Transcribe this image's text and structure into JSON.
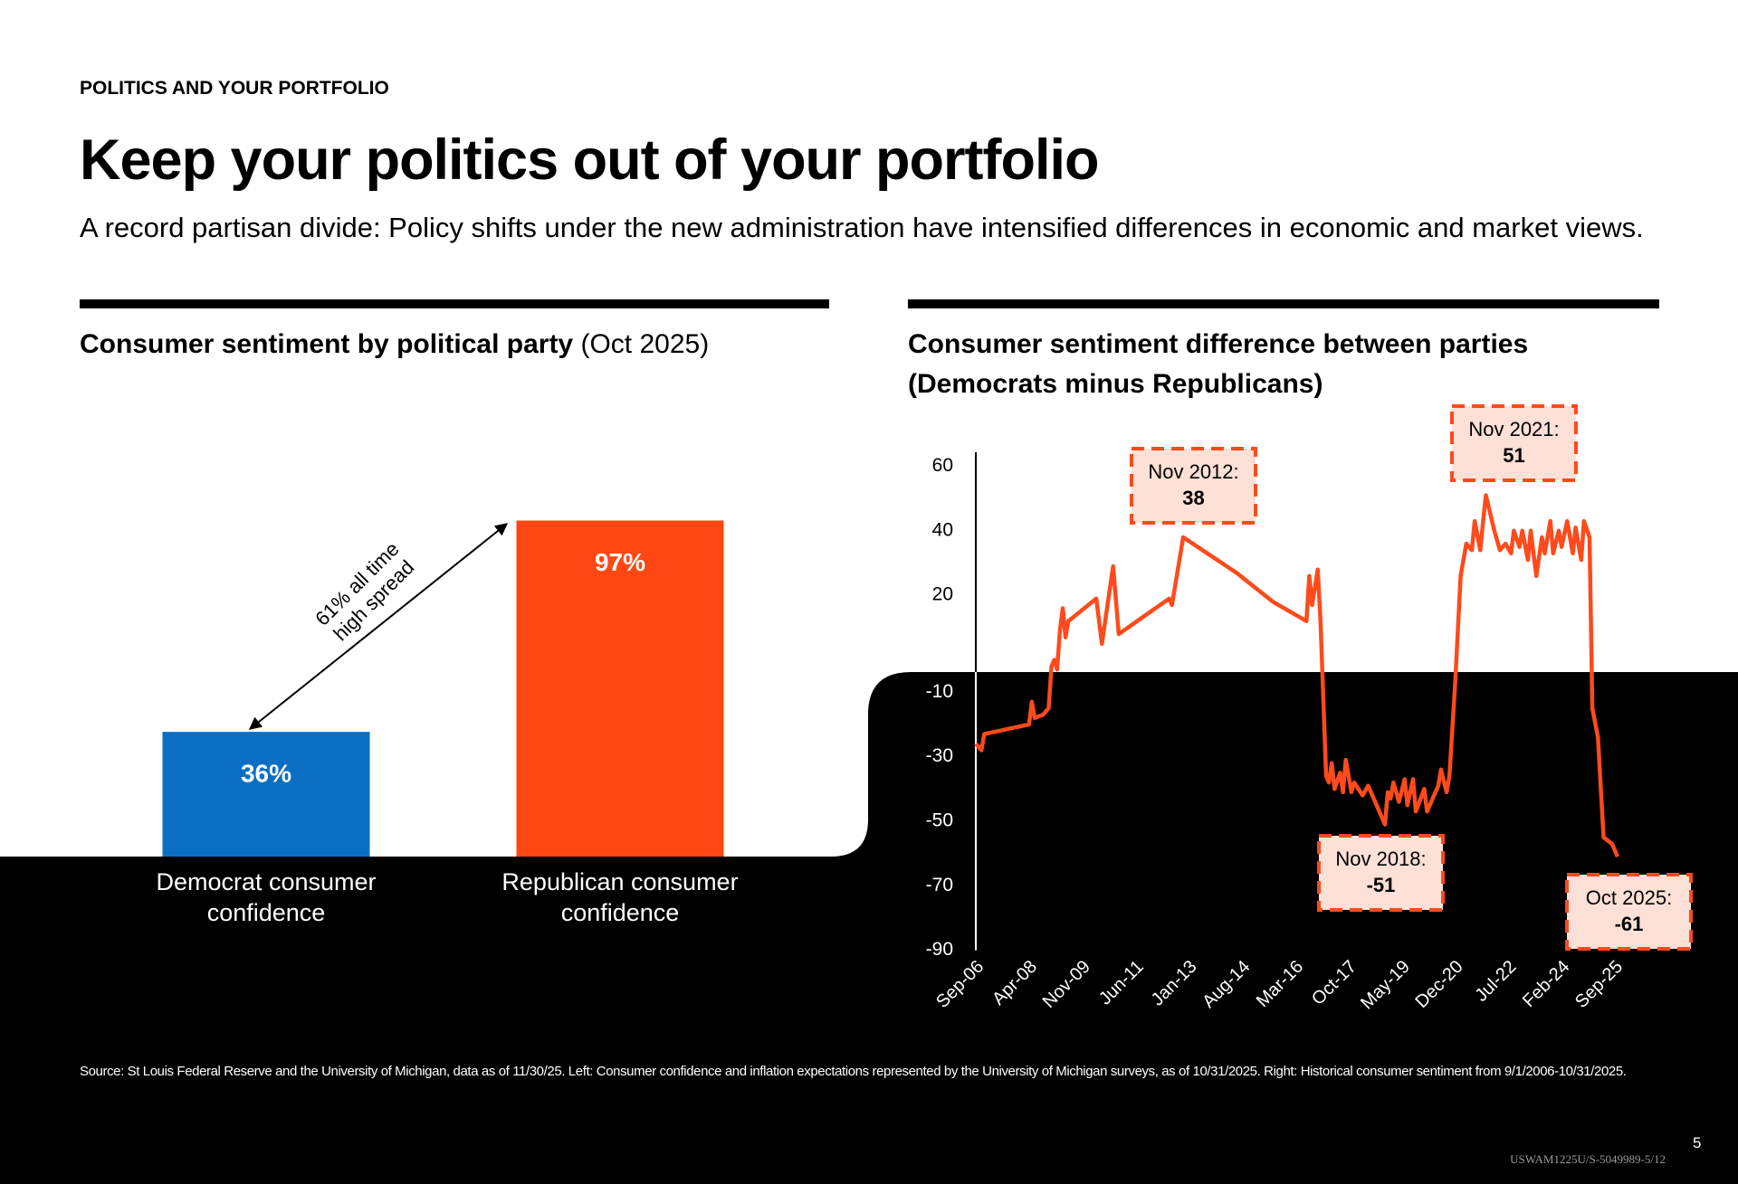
{
  "header": {
    "kicker": "POLITICS AND YOUR PORTFOLIO",
    "title": "Keep your politics out of your portfolio",
    "subtitle": "A record partisan divide: Policy shifts under the new administration have intensified differences in economic and market views."
  },
  "chart_data": [
    {
      "type": "bar",
      "title": "Consumer sentiment by political party",
      "subtitle": "(Oct 2025)",
      "categories": [
        "Democrat consumer confidence",
        "Republican consumer confidence"
      ],
      "values": [
        36,
        97
      ],
      "value_labels": [
        "36%",
        "97%"
      ],
      "colors": [
        "#0a6fc2",
        "#ff4713"
      ],
      "annotation": "61% all time high spread"
    },
    {
      "type": "line",
      "title": "Consumer sentiment difference between parties",
      "subtitle": "(Democrats minus Republicans)",
      "x": [
        "2006-09",
        "2006-11",
        "2006-12",
        "2008-04",
        "2008-05",
        "2008-06",
        "2008-09",
        "2008-11",
        "2008-12",
        "2009-01",
        "2009-02",
        "2009-03",
        "2009-04",
        "2009-05",
        "2009-06",
        "2010-04",
        "2010-06",
        "2010-10",
        "2010-12",
        "2012-06",
        "2012-07",
        "2012-11",
        "2014-06",
        "2015-07",
        "2016-07",
        "2016-08",
        "2016-09",
        "2016-11",
        "2016-12",
        "2017-02",
        "2017-03",
        "2017-04",
        "2017-05",
        "2017-07",
        "2017-08",
        "2017-09",
        "2017-11",
        "2017-12",
        "2018-03",
        "2018-05",
        "2018-07",
        "2018-11",
        "2018-12",
        "2019-01",
        "2019-02",
        "2019-04",
        "2019-06",
        "2019-07",
        "2019-09",
        "2019-10",
        "2020-01",
        "2020-02",
        "2020-04",
        "2020-06",
        "2020-07",
        "2020-09",
        "2020-10",
        "2020-12",
        "2021-02",
        "2021-04",
        "2021-06",
        "2021-07",
        "2021-09",
        "2021-10",
        "2021-11",
        "2022-02",
        "2022-04",
        "2022-06",
        "2022-08",
        "2022-09",
        "2022-11",
        "2022-12",
        "2023-02",
        "2023-03",
        "2023-05",
        "2023-07",
        "2023-08",
        "2023-10",
        "2023-11",
        "2024-01",
        "2024-02",
        "2024-04",
        "2024-06",
        "2024-07",
        "2024-09",
        "2024-10",
        "2024-12",
        "2025-01",
        "2025-03",
        "2025-05",
        "2025-08",
        "2025-10"
      ],
      "series": [
        {
          "name": "Democrats minus Republicans",
          "color": "#ff4a1c",
          "values": [
            -26,
            -28,
            -23,
            -20,
            -13,
            -18,
            -17,
            -15,
            -2,
            0,
            -3,
            9,
            16,
            7,
            12,
            19,
            5,
            29,
            8,
            19,
            17,
            38,
            27,
            18,
            12,
            26,
            17,
            28,
            12,
            -36,
            -38,
            -32,
            -40,
            -35,
            -41,
            -31,
            -41,
            -38,
            -42,
            -39,
            -43,
            -51,
            -41,
            -43,
            -38,
            -44,
            -37,
            -45,
            -37,
            -47,
            -40,
            -47,
            -43,
            -39,
            -34,
            -41,
            -36,
            -8,
            26,
            36,
            34,
            43,
            34,
            43,
            51,
            40,
            34,
            36,
            33,
            40,
            35,
            40,
            31,
            40,
            26,
            38,
            33,
            43,
            33,
            40,
            35,
            43,
            33,
            41,
            31,
            43,
            38,
            -15,
            -24,
            -55,
            -57,
            -61
          ]
        }
      ],
      "xlim": [
        "2006-09",
        "2025-10"
      ],
      "xticks": [
        {
          "value": "2006-09",
          "label": "Sep-06"
        },
        {
          "value": "2008-04",
          "label": "Apr-08"
        },
        {
          "value": "2009-11",
          "label": "Nov-09"
        },
        {
          "value": "2011-06",
          "label": "Jun-11"
        },
        {
          "value": "2013-01",
          "label": "Jan-13"
        },
        {
          "value": "2014-08",
          "label": "Aug-14"
        },
        {
          "value": "2016-03",
          "label": "Mar-16"
        },
        {
          "value": "2017-10",
          "label": "Oct-17"
        },
        {
          "value": "2019-05",
          "label": "May-19"
        },
        {
          "value": "2020-12",
          "label": "Dec-20"
        },
        {
          "value": "2022-07",
          "label": "Jul-22"
        },
        {
          "value": "2024-02",
          "label": "Feb-24"
        },
        {
          "value": "2025-09",
          "label": "Sep-25"
        }
      ],
      "ylim": [
        -90,
        60
      ],
      "yticks": [
        60,
        40,
        20,
        -10,
        -30,
        -50,
        -70,
        -90
      ],
      "annotations": [
        {
          "label": "Nov 2012:",
          "value": 38
        },
        {
          "label": "Nov 2021:",
          "value": 51
        },
        {
          "label": "Nov 2018:",
          "value": -51
        },
        {
          "label": "Oct 2025:",
          "value": -61
        }
      ]
    }
  ],
  "footer": {
    "source": "Source: St Louis Federal Reserve and the University of Michigan, data as of 11/30/25. Left: Consumer confidence and inflation expectations represented by the University of Michigan surveys, as of 10/31/2025. Right: Historical consumer sentiment from 9/1/2006-10/31/2025.",
    "page_number": "5",
    "code": "USWAM1225U/S-5049989-5/12"
  }
}
